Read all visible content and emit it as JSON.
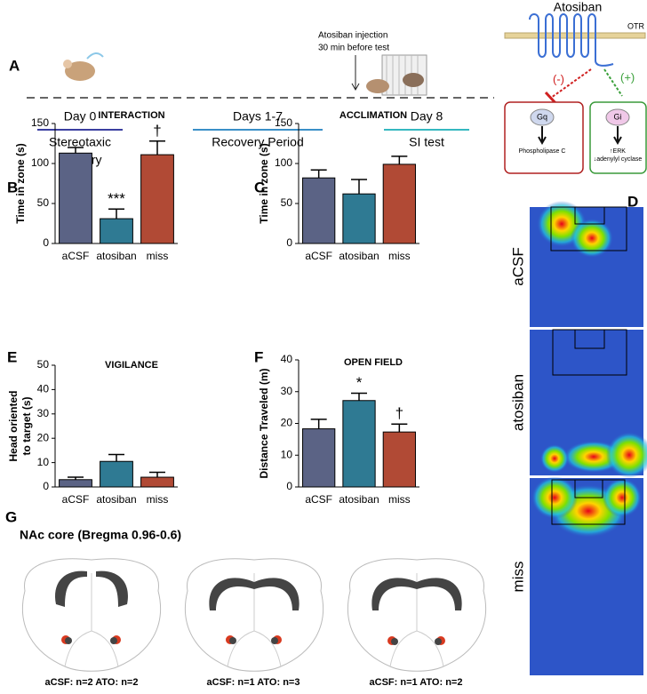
{
  "timeline": {
    "panel": "A",
    "injection": [
      "Atosiban injection",
      "30 min before test"
    ],
    "steps": [
      {
        "label": "Day 0",
        "desc": [
          "Stereotaxic",
          "Surgery"
        ]
      },
      {
        "label": "Days 1-7",
        "desc": [
          "Recovery Period"
        ]
      },
      {
        "label": "Day 8",
        "desc": [
          "SI test"
        ]
      }
    ]
  },
  "mechanism": {
    "drug": "Atosiban",
    "receptor": "OTR",
    "inhibit": "(-)",
    "activate": "(+)",
    "gq": {
      "label": "Gq",
      "effect": [
        "Phospholipase C"
      ]
    },
    "gi": {
      "label": "Gi",
      "effect": [
        "↑ERK",
        "↓adenylyl cyclase"
      ]
    }
  },
  "chart_data": [
    {
      "type": "bar",
      "panel": "B",
      "title": "INTERACTION",
      "ylabel": [
        "Time in zone (s)"
      ],
      "categories": [
        "aCSF",
        "atosiban",
        "miss"
      ],
      "values": [
        113,
        31,
        111
      ],
      "errors": [
        7,
        12,
        17
      ],
      "annotations": [
        null,
        "***",
        "†"
      ],
      "colors": [
        "#5b6385",
        "#2f7a93",
        "#b14a35"
      ],
      "ylim": [
        0,
        150
      ],
      "yticks": [
        0,
        50,
        100,
        150
      ]
    },
    {
      "type": "bar",
      "panel": "C",
      "title": "ACCLIMATION",
      "ylabel": [
        "Time in zone (s)"
      ],
      "categories": [
        "aCSF",
        "atosiban",
        "miss"
      ],
      "values": [
        82,
        62,
        99
      ],
      "errors": [
        10,
        18,
        10
      ],
      "annotations": [
        null,
        null,
        null
      ],
      "colors": [
        "#5b6385",
        "#2f7a93",
        "#b14a35"
      ],
      "ylim": [
        0,
        150
      ],
      "yticks": [
        0,
        50,
        100,
        150
      ]
    },
    {
      "type": "bar",
      "panel": "E",
      "title": "VIGILANCE",
      "ylabel": [
        "Head oriented",
        "to target (s)"
      ],
      "categories": [
        "aCSF",
        "atosiban",
        "miss"
      ],
      "values": [
        3,
        10.5,
        4
      ],
      "errors": [
        1,
        2.8,
        2
      ],
      "annotations": [
        null,
        null,
        null
      ],
      "colors": [
        "#5b6385",
        "#2f7a93",
        "#b14a35"
      ],
      "ylim": [
        0,
        50
      ],
      "yticks": [
        0,
        10,
        20,
        30,
        40,
        50
      ]
    },
    {
      "type": "bar",
      "panel": "F",
      "title": "OPEN FIELD",
      "ylabel": [
        "Distance Traveled (m)"
      ],
      "categories": [
        "aCSF",
        "atosiban",
        "miss"
      ],
      "values": [
        18.3,
        27.2,
        17.3
      ],
      "errors": [
        3,
        2.3,
        2.5
      ],
      "annotations": [
        null,
        "*",
        "†"
      ],
      "colors": [
        "#5b6385",
        "#2f7a93",
        "#b14a35"
      ],
      "ylim": [
        0,
        40
      ],
      "yticks": [
        0,
        10,
        20,
        30,
        40
      ]
    }
  ],
  "heatmaps": {
    "panel": "D",
    "labels": [
      "aCSF",
      "atosiban",
      "miss"
    ]
  },
  "histology": {
    "panel": "G",
    "title": "NAc core (Bregma 0.96-0.6)",
    "counts": [
      "aCSF: n=2 ATO: n=2",
      "aCSF: n=1 ATO: n=3",
      "aCSF: n=1 ATO: n=2"
    ]
  }
}
